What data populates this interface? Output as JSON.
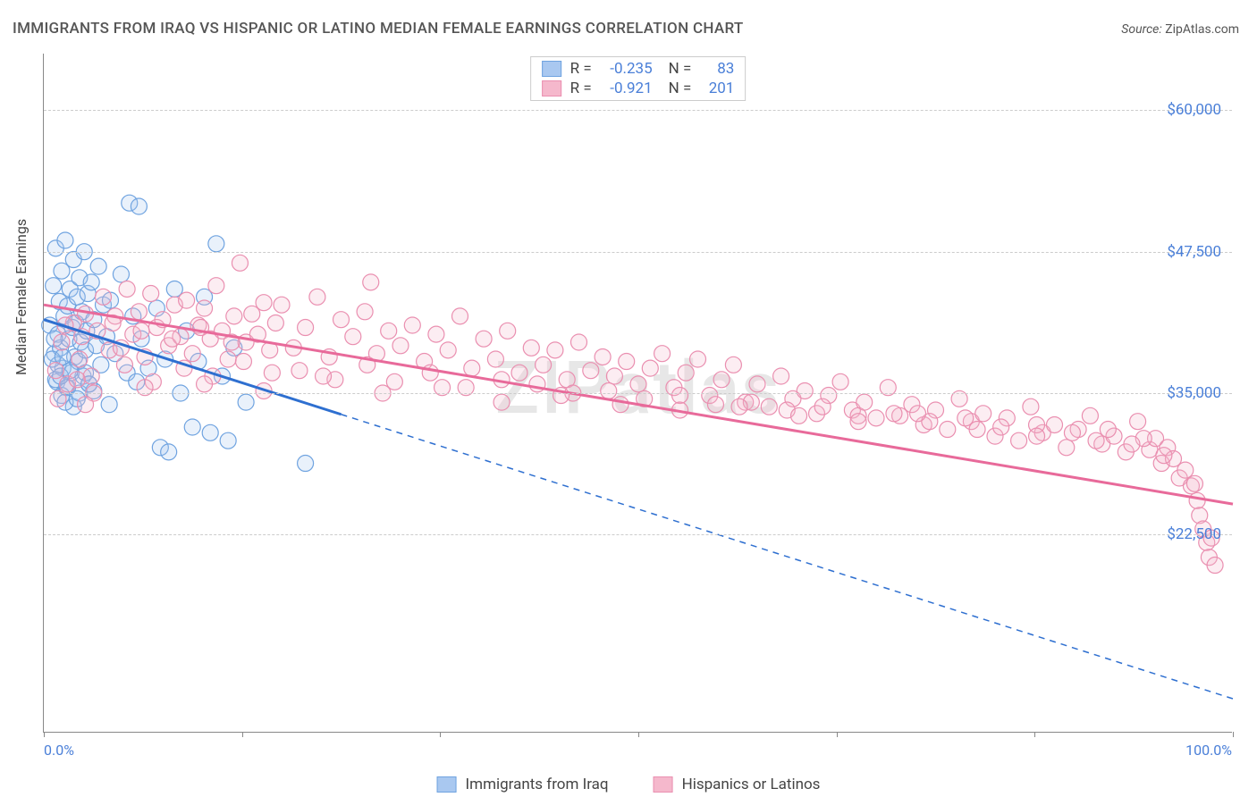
{
  "title": "IMMIGRANTS FROM IRAQ VS HISPANIC OR LATINO MEDIAN FEMALE EARNINGS CORRELATION CHART",
  "source_label": "Source:",
  "source_value": "ZipAtlas.com",
  "watermark": "ZIPatlas",
  "y_axis_title": "Median Female Earnings",
  "chart": {
    "type": "scatter-with-regression",
    "background_color": "#ffffff",
    "grid_color": "#cccccc",
    "axis_color": "#888888",
    "tick_label_color": "#4a7fd8",
    "tick_label_fontsize": 17,
    "xlim": [
      0,
      100
    ],
    "ylim": [
      5000,
      65000
    ],
    "x_tick_positions": [
      0,
      16.67,
      33.33,
      50,
      66.67,
      83.33,
      100
    ],
    "x_tick_labels_shown": {
      "0": "0.0%",
      "100": "100.0%"
    },
    "y_grid_values": [
      22500,
      35000,
      47500,
      60000
    ],
    "y_tick_labels": [
      "$22,500",
      "$35,000",
      "$47,500",
      "$60,000"
    ],
    "marker_radius": 9,
    "marker_stroke_width": 1.2,
    "marker_fill_opacity": 0.25,
    "regression_line_width": 3,
    "series": [
      {
        "name": "Immigrants from Iraq",
        "color_fill": "#a9c8f0",
        "color_stroke": "#6fa3e0",
        "line_color": "#2e6fd0",
        "R": "-0.235",
        "N": "83",
        "regression": {
          "x1": 0,
          "y1": 41500,
          "x2": 100,
          "y2": 8000,
          "solid_until_x": 25
        },
        "points": [
          [
            0.5,
            41000
          ],
          [
            0.8,
            44500
          ],
          [
            0.9,
            38500
          ],
          [
            1.0,
            47800
          ],
          [
            1.1,
            36000
          ],
          [
            1.2,
            40200
          ],
          [
            1.3,
            43100
          ],
          [
            1.4,
            39000
          ],
          [
            1.5,
            45800
          ],
          [
            1.6,
            37200
          ],
          [
            1.7,
            41800
          ],
          [
            1.8,
            48500
          ],
          [
            1.9,
            35500
          ],
          [
            2.0,
            42700
          ],
          [
            2.1,
            39800
          ],
          [
            2.2,
            44200
          ],
          [
            2.3,
            36800
          ],
          [
            2.4,
            40800
          ],
          [
            2.5,
            46800
          ],
          [
            2.6,
            38200
          ],
          [
            2.7,
            41200
          ],
          [
            2.8,
            43500
          ],
          [
            2.9,
            37800
          ],
          [
            3.0,
            45200
          ],
          [
            3.1,
            39500
          ],
          [
            3.2,
            42200
          ],
          [
            3.3,
            36500
          ],
          [
            3.4,
            47500
          ],
          [
            3.5,
            38800
          ],
          [
            3.6,
            40500
          ],
          [
            3.7,
            43800
          ],
          [
            3.8,
            35800
          ],
          [
            4.0,
            44800
          ],
          [
            4.2,
            41500
          ],
          [
            4.4,
            39200
          ],
          [
            4.6,
            46200
          ],
          [
            4.8,
            37500
          ],
          [
            5.0,
            42800
          ],
          [
            5.3,
            40000
          ],
          [
            5.6,
            43200
          ],
          [
            6.0,
            38500
          ],
          [
            6.5,
            45500
          ],
          [
            7.0,
            36800
          ],
          [
            7.2,
            51800
          ],
          [
            7.5,
            41800
          ],
          [
            8.0,
            51500
          ],
          [
            8.2,
            39800
          ],
          [
            8.8,
            37200
          ],
          [
            9.5,
            42500
          ],
          [
            9.8,
            30200
          ],
          [
            10.2,
            38000
          ],
          [
            10.5,
            29800
          ],
          [
            11.0,
            44200
          ],
          [
            11.5,
            35000
          ],
          [
            12.0,
            40500
          ],
          [
            12.5,
            32000
          ],
          [
            13.0,
            37800
          ],
          [
            13.5,
            43500
          ],
          [
            14.0,
            31500
          ],
          [
            14.5,
            48200
          ],
          [
            15.0,
            36500
          ],
          [
            15.5,
            30800
          ],
          [
            16.0,
            39000
          ],
          [
            17.0,
            34200
          ],
          [
            22.0,
            28800
          ],
          [
            1.0,
            36200
          ],
          [
            1.5,
            34800
          ],
          [
            2.0,
            35500
          ],
          [
            2.5,
            33800
          ],
          [
            1.2,
            37500
          ],
          [
            1.8,
            34200
          ],
          [
            3.0,
            35000
          ],
          [
            0.7,
            38000
          ],
          [
            1.4,
            36500
          ],
          [
            2.8,
            34500
          ],
          [
            3.5,
            36800
          ],
          [
            4.2,
            35200
          ],
          [
            0.9,
            39800
          ],
          [
            1.6,
            38200
          ],
          [
            2.2,
            37000
          ],
          [
            3.8,
            35800
          ],
          [
            5.5,
            34000
          ],
          [
            7.8,
            36000
          ]
        ]
      },
      {
        "name": "Hispanics or Latinos",
        "color_fill": "#f5b8cc",
        "color_stroke": "#ea8fb0",
        "line_color": "#e86a9a",
        "R": "-0.921",
        "N": "201",
        "regression": {
          "x1": 0,
          "y1": 42800,
          "x2": 100,
          "y2": 25200,
          "solid_until_x": 100
        },
        "points": [
          [
            1.0,
            37000
          ],
          [
            1.5,
            39500
          ],
          [
            2.0,
            35800
          ],
          [
            2.5,
            41200
          ],
          [
            3.0,
            38000
          ],
          [
            3.5,
            42000
          ],
          [
            4.0,
            36500
          ],
          [
            4.5,
            40500
          ],
          [
            5.0,
            43500
          ],
          [
            5.5,
            38800
          ],
          [
            6.0,
            41800
          ],
          [
            6.5,
            39000
          ],
          [
            7.0,
            44200
          ],
          [
            7.5,
            40200
          ],
          [
            8.0,
            42200
          ],
          [
            8.5,
            38200
          ],
          [
            9.0,
            43800
          ],
          [
            9.5,
            40800
          ],
          [
            10.0,
            41500
          ],
          [
            10.5,
            39200
          ],
          [
            11.0,
            42800
          ],
          [
            11.5,
            40000
          ],
          [
            12.0,
            43200
          ],
          [
            12.5,
            38500
          ],
          [
            13.0,
            41000
          ],
          [
            13.5,
            42500
          ],
          [
            14.0,
            39800
          ],
          [
            14.5,
            44500
          ],
          [
            15.0,
            40500
          ],
          [
            15.5,
            38000
          ],
          [
            16.0,
            41800
          ],
          [
            16.5,
            46500
          ],
          [
            17.0,
            39500
          ],
          [
            17.5,
            42000
          ],
          [
            18.0,
            40200
          ],
          [
            18.5,
            43000
          ],
          [
            19.0,
            38800
          ],
          [
            19.5,
            41200
          ],
          [
            20.0,
            42800
          ],
          [
            21.0,
            39000
          ],
          [
            22.0,
            40800
          ],
          [
            23.0,
            43500
          ],
          [
            24.0,
            38200
          ],
          [
            25.0,
            41500
          ],
          [
            26.0,
            40000
          ],
          [
            27.0,
            42200
          ],
          [
            27.5,
            44800
          ],
          [
            28.0,
            38500
          ],
          [
            29.0,
            40500
          ],
          [
            30.0,
            39200
          ],
          [
            31.0,
            41000
          ],
          [
            32.0,
            37800
          ],
          [
            33.0,
            40200
          ],
          [
            34.0,
            38800
          ],
          [
            35.0,
            41800
          ],
          [
            36.0,
            37200
          ],
          [
            37.0,
            39800
          ],
          [
            38.0,
            38000
          ],
          [
            39.0,
            40500
          ],
          [
            40.0,
            36800
          ],
          [
            41.0,
            39000
          ],
          [
            42.0,
            37500
          ],
          [
            43.0,
            38800
          ],
          [
            44.0,
            36200
          ],
          [
            45.0,
            39500
          ],
          [
            46.0,
            37000
          ],
          [
            47.0,
            38200
          ],
          [
            48.0,
            36500
          ],
          [
            49.0,
            37800
          ],
          [
            50.0,
            35800
          ],
          [
            51.0,
            37200
          ],
          [
            52.0,
            38500
          ],
          [
            53.0,
            35500
          ],
          [
            54.0,
            36800
          ],
          [
            55.0,
            38000
          ],
          [
            56.0,
            34800
          ],
          [
            57.0,
            36200
          ],
          [
            58.0,
            37500
          ],
          [
            59.0,
            34200
          ],
          [
            60.0,
            35800
          ],
          [
            61.0,
            33800
          ],
          [
            62.0,
            36500
          ],
          [
            63.0,
            34500
          ],
          [
            64.0,
            35200
          ],
          [
            65.0,
            33200
          ],
          [
            66.0,
            34800
          ],
          [
            67.0,
            36000
          ],
          [
            68.0,
            33500
          ],
          [
            69.0,
            34200
          ],
          [
            70.0,
            32800
          ],
          [
            71.0,
            35500
          ],
          [
            72.0,
            33000
          ],
          [
            73.0,
            34000
          ],
          [
            74.0,
            32200
          ],
          [
            75.0,
            33500
          ],
          [
            76.0,
            31800
          ],
          [
            77.0,
            34500
          ],
          [
            78.0,
            32500
          ],
          [
            79.0,
            33200
          ],
          [
            80.0,
            31200
          ],
          [
            81.0,
            32800
          ],
          [
            82.0,
            30800
          ],
          [
            83.0,
            33800
          ],
          [
            84.0,
            31500
          ],
          [
            85.0,
            32200
          ],
          [
            86.0,
            30200
          ],
          [
            87.0,
            31800
          ],
          [
            88.0,
            33000
          ],
          [
            89.0,
            30500
          ],
          [
            90.0,
            31200
          ],
          [
            91.0,
            29800
          ],
          [
            92.0,
            32500
          ],
          [
            93.0,
            30000
          ],
          [
            93.5,
            31000
          ],
          [
            94.0,
            28800
          ],
          [
            94.5,
            30200
          ],
          [
            95.0,
            29200
          ],
          [
            95.5,
            27500
          ],
          [
            96.0,
            28200
          ],
          [
            96.5,
            26800
          ],
          [
            97.0,
            25500
          ],
          [
            97.2,
            24200
          ],
          [
            97.5,
            23000
          ],
          [
            97.8,
            21800
          ],
          [
            98.0,
            20500
          ],
          [
            98.2,
            22200
          ],
          [
            98.5,
            19800
          ],
          [
            1.2,
            34500
          ],
          [
            2.8,
            36200
          ],
          [
            4.2,
            35000
          ],
          [
            6.8,
            37500
          ],
          [
            9.2,
            36000
          ],
          [
            11.8,
            37200
          ],
          [
            14.2,
            36500
          ],
          [
            16.8,
            37800
          ],
          [
            19.2,
            36800
          ],
          [
            21.5,
            37000
          ],
          [
            24.5,
            36200
          ],
          [
            27.2,
            37500
          ],
          [
            29.5,
            36000
          ],
          [
            32.5,
            36800
          ],
          [
            35.5,
            35500
          ],
          [
            38.5,
            36200
          ],
          [
            41.5,
            35800
          ],
          [
            44.5,
            35000
          ],
          [
            47.5,
            35200
          ],
          [
            50.5,
            34500
          ],
          [
            53.5,
            34800
          ],
          [
            56.5,
            34000
          ],
          [
            59.5,
            34200
          ],
          [
            62.5,
            33500
          ],
          [
            65.5,
            33800
          ],
          [
            68.5,
            33000
          ],
          [
            71.5,
            33200
          ],
          [
            74.5,
            32500
          ],
          [
            77.5,
            32800
          ],
          [
            80.5,
            32000
          ],
          [
            83.5,
            32200
          ],
          [
            86.5,
            31500
          ],
          [
            89.5,
            31800
          ],
          [
            92.5,
            31000
          ],
          [
            3.5,
            34000
          ],
          [
            8.5,
            35500
          ],
          [
            13.5,
            35800
          ],
          [
            18.5,
            35200
          ],
          [
            23.5,
            36500
          ],
          [
            28.5,
            35000
          ],
          [
            33.5,
            35500
          ],
          [
            38.5,
            34200
          ],
          [
            43.5,
            34800
          ],
          [
            48.5,
            34000
          ],
          [
            53.5,
            33500
          ],
          [
            58.5,
            33800
          ],
          [
            63.5,
            33000
          ],
          [
            68.5,
            32500
          ],
          [
            73.5,
            33200
          ],
          [
            78.5,
            31800
          ],
          [
            83.5,
            31200
          ],
          [
            88.5,
            30800
          ],
          [
            91.5,
            30500
          ],
          [
            94.2,
            29500
          ],
          [
            96.8,
            27000
          ],
          [
            1.8,
            41000
          ],
          [
            3.2,
            40000
          ],
          [
            5.8,
            41200
          ],
          [
            8.2,
            40500
          ],
          [
            10.8,
            39800
          ],
          [
            13.2,
            40800
          ],
          [
            15.8,
            39500
          ]
        ]
      }
    ]
  },
  "legend_bottom": [
    {
      "swatch_fill": "#a9c8f0",
      "swatch_stroke": "#6fa3e0",
      "label": "Immigrants from Iraq"
    },
    {
      "swatch_fill": "#f5b8cc",
      "swatch_stroke": "#ea8fb0",
      "label": "Hispanics or Latinos"
    }
  ]
}
